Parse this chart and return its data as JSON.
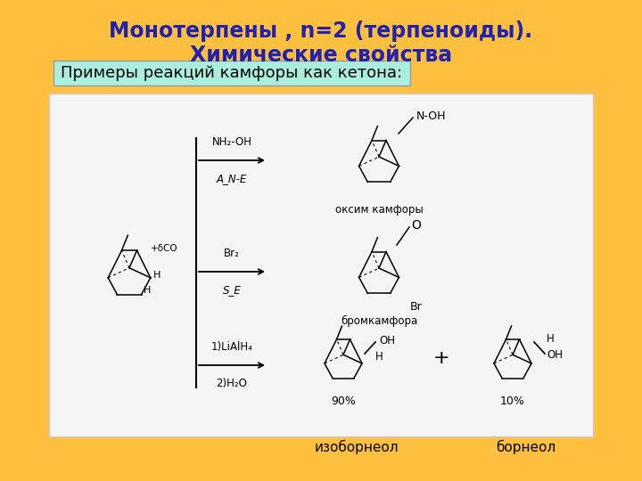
{
  "title_line1": "Монотерпены , n=2 (терпеноиды).",
  "title_line2": "Химические свойства",
  "subtitle_box_text": "Примеры реакций камфоры как кетона:",
  "label_isobornol": "изоборнеол",
  "label_bornol": "борнеол",
  "background_color": "#FFBF3F",
  "title_color": "#2222AA",
  "box_bg_color": "#AAEEDD",
  "box_border_color": "#999999",
  "white_panel_color": "#F5F5F5",
  "title_fontsize": 17,
  "subtitle_fontsize": 13,
  "label_fontsize": 11
}
